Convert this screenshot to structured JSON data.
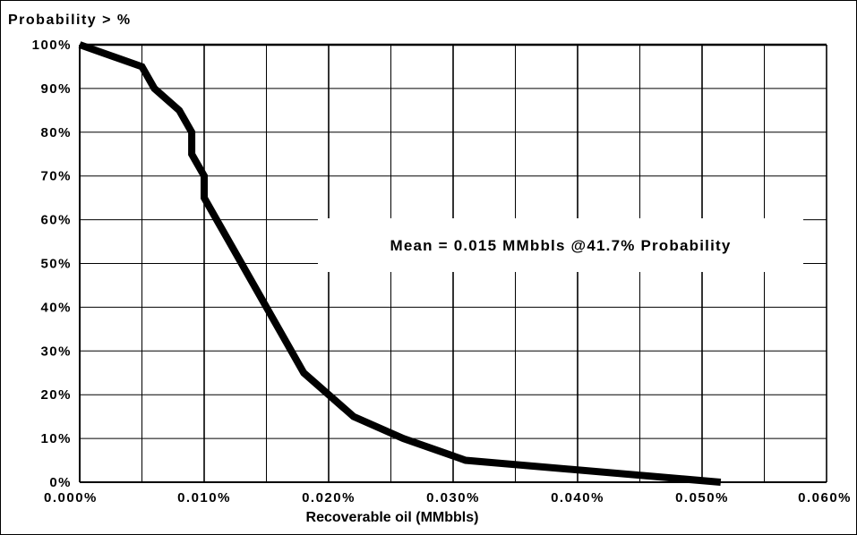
{
  "chart_data": {
    "type": "line",
    "title": "",
    "xlabel": "Recoverable oil (MMbbls)",
    "ylabel": "Probability > %",
    "xlim": [
      0,
      0.06
    ],
    "ylim": [
      0,
      100
    ],
    "x_ticks": [
      "0.000%",
      "0.010%",
      "0.020%",
      "0.030%",
      "0.040%",
      "0.050%",
      "0.060%"
    ],
    "y_ticks": [
      "0%",
      "10%",
      "20%",
      "30%",
      "40%",
      "50%",
      "60%",
      "70%",
      "80%",
      "90%",
      "100%"
    ],
    "grid": true,
    "series": [
      {
        "x": [
          0.0,
          0.005,
          0.006,
          0.008,
          0.009,
          0.009,
          0.01,
          0.01,
          0.014,
          0.018,
          0.022,
          0.026,
          0.031,
          0.0515
        ],
        "y": [
          100,
          95,
          90,
          85,
          80,
          75,
          70,
          65,
          45,
          25,
          15,
          10,
          5,
          0
        ]
      }
    ],
    "annotation": "Mean = 0.015 MMbbls @41.7% Probability"
  }
}
